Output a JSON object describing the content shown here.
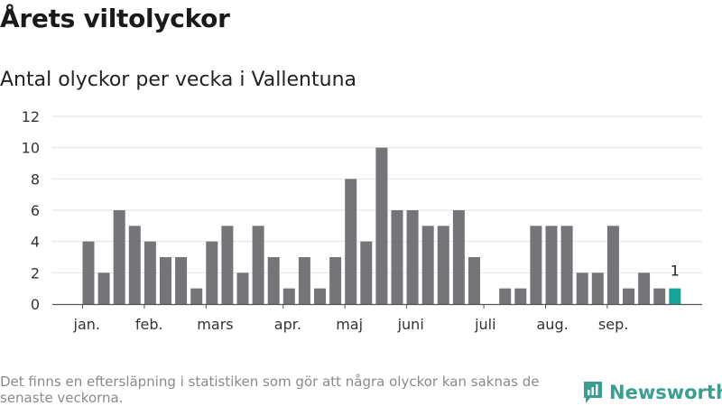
{
  "title": "Årets viltolyckor",
  "subtitle": "Antal olyckor per vecka i Vallentuna",
  "footer": "Det finns en eftersläpning i statistiken som gör att några olyckor kan saknas de senaste veckorna.",
  "brand": {
    "name": "Newsworthy",
    "color": "#3a9f91",
    "icon": "newsworthy-logo-icon"
  },
  "colors": {
    "bar": "#757479",
    "highlight": "#15a499",
    "grid": "#e2e2e2",
    "axis": "#555555"
  },
  "chart_data": {
    "type": "bar",
    "values": [
      4,
      2,
      6,
      5,
      4,
      3,
      3,
      1,
      4,
      5,
      2,
      5,
      3,
      1,
      3,
      1,
      3,
      8,
      4,
      10,
      6,
      6,
      5,
      5,
      6,
      3,
      0,
      1,
      1,
      5,
      5,
      5,
      2,
      2,
      5,
      1,
      2,
      1,
      1
    ],
    "highlight_last": true,
    "last_label": "1",
    "ylim": [
      0,
      12
    ],
    "yticks": [
      0,
      2,
      4,
      6,
      8,
      10,
      12
    ],
    "month_labels": [
      {
        "label": "jan.",
        "bar_index": 0
      },
      {
        "label": "feb.",
        "bar_index": 4
      },
      {
        "label": "mars",
        "bar_index": 8
      },
      {
        "label": "apr.",
        "bar_index": 13
      },
      {
        "label": "maj",
        "bar_index": 17
      },
      {
        "label": "juni",
        "bar_index": 21
      },
      {
        "label": "juli",
        "bar_index": 26
      },
      {
        "label": "aug.",
        "bar_index": 30
      },
      {
        "label": "sep.",
        "bar_index": 34
      }
    ],
    "grid": true,
    "xlabel": "",
    "ylabel": ""
  }
}
